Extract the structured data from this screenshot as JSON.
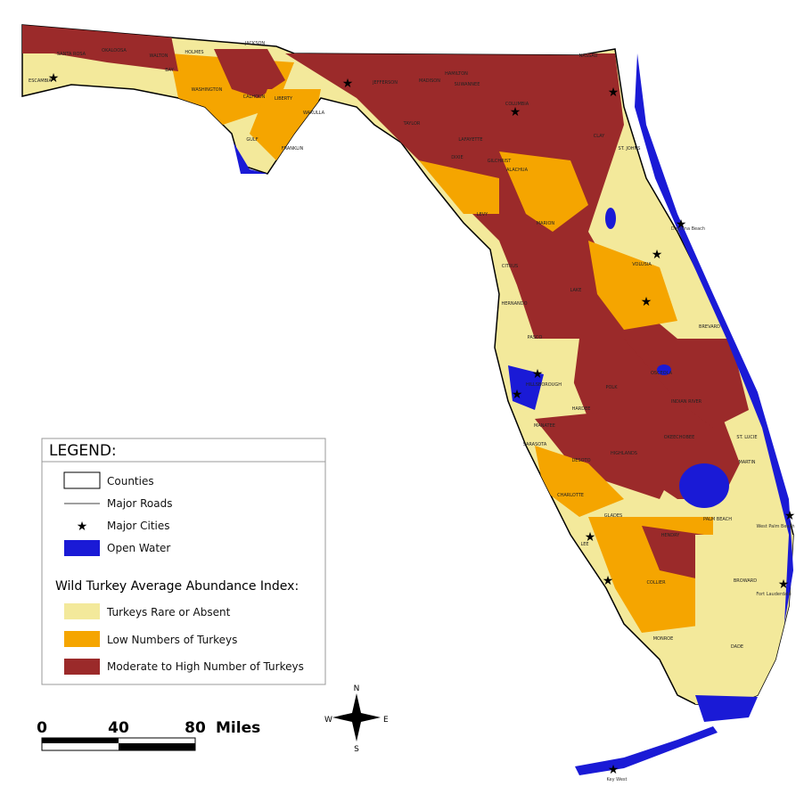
{
  "legend": {
    "title": "LEGEND:",
    "items": [
      "Counties",
      "Major Roads",
      "Major Cities",
      "Open Water"
    ],
    "index_title": "Wild Turkey Average Abundance Index:",
    "classes": [
      "Turkeys Rare or Absent",
      "Low Numbers of Turkeys",
      "Moderate to High Number of Turkeys"
    ]
  },
  "scale_bar": {
    "labels": [
      "0",
      "40",
      "80"
    ],
    "unit": "Miles"
  },
  "compass": {
    "north": "N",
    "south": "S",
    "east": "E",
    "west": "W"
  },
  "counties": [
    "ESCAMBIA",
    "SANTA ROSA",
    "OKALOOSA",
    "WALTON",
    "HOLMES",
    "JACKSON",
    "WASHINGTON",
    "CALHOUN",
    "BAY",
    "GULF",
    "LIBERTY",
    "FRANKLIN",
    "WAKULLA",
    "JEFFERSON",
    "MADISON",
    "TAYLOR",
    "HAMILTON",
    "SUWANNEE",
    "COLUMBIA",
    "NASSAU",
    "CLAY",
    "ST. JOHNS",
    "LAFAYETTE",
    "DIXIE",
    "GILCHRIST",
    "ALACHUA",
    "LEVY",
    "MARION",
    "VOLUSIA",
    "CITRUS",
    "LAKE",
    "HERNANDO",
    "PASCO",
    "BREVARD",
    "HILLSBOROUGH",
    "POLK",
    "OSCEOLA",
    "INDIAN RIVER",
    "MANATEE",
    "HARDEE",
    "OKEECHOBEE",
    "ST. LUCIE",
    "SARASOTA",
    "DESOTO",
    "HIGHLANDS",
    "MARTIN",
    "CHARLOTTE",
    "GLADES",
    "PALM BEACH",
    "LEE",
    "HENDRY",
    "BROWARD",
    "COLLIER",
    "MONROE",
    "DADE"
  ],
  "cities": [
    "West Palm Beach",
    "Fort Lauderdale",
    "Daytona Beach",
    "Key West"
  ]
}
